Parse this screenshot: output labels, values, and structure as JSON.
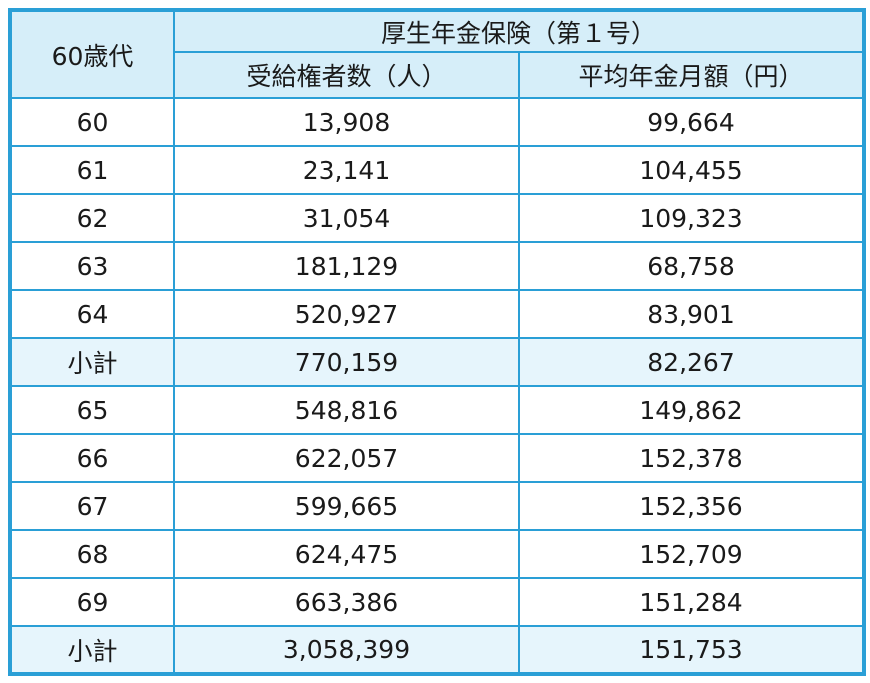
{
  "table": {
    "corner_header": "60歳代",
    "group_header": "厚生年金保険（第１号）",
    "column_headers": [
      "受給権者数（人）",
      "平均年金月額（円）"
    ],
    "rows": [
      {
        "age": "60",
        "recipients": "13,908",
        "avg_monthly": "99,664",
        "subtotal": false
      },
      {
        "age": "61",
        "recipients": "23,141",
        "avg_monthly": "104,455",
        "subtotal": false
      },
      {
        "age": "62",
        "recipients": "31,054",
        "avg_monthly": "109,323",
        "subtotal": false
      },
      {
        "age": "63",
        "recipients": "181,129",
        "avg_monthly": "68,758",
        "subtotal": false
      },
      {
        "age": "64",
        "recipients": "520,927",
        "avg_monthly": "83,901",
        "subtotal": false
      },
      {
        "age": "小計",
        "recipients": "770,159",
        "avg_monthly": "82,267",
        "subtotal": true
      },
      {
        "age": "65",
        "recipients": "548,816",
        "avg_monthly": "149,862",
        "subtotal": false
      },
      {
        "age": "66",
        "recipients": "622,057",
        "avg_monthly": "152,378",
        "subtotal": false
      },
      {
        "age": "67",
        "recipients": "599,665",
        "avg_monthly": "152,356",
        "subtotal": false
      },
      {
        "age": "68",
        "recipients": "624,475",
        "avg_monthly": "152,709",
        "subtotal": false
      },
      {
        "age": "69",
        "recipients": "663,386",
        "avg_monthly": "151,284",
        "subtotal": false
      },
      {
        "age": "小計",
        "recipients": "3,058,399",
        "avg_monthly": "151,753",
        "subtotal": true
      }
    ]
  },
  "colors": {
    "border": "#2a9fd6",
    "header_bg": "#d6eef9",
    "subtotal_bg": "#e6f5fc",
    "text": "#1a1a1a"
  }
}
